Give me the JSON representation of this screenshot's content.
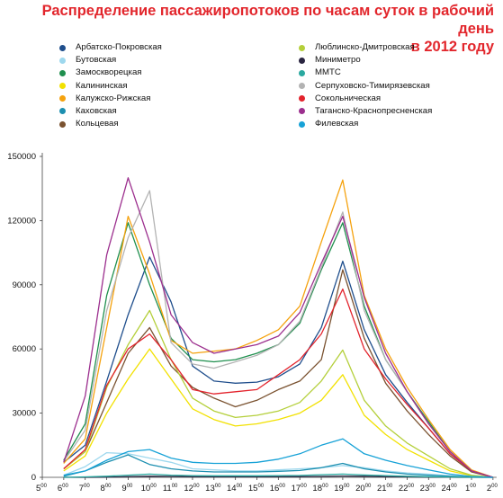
{
  "chart_data": {
    "type": "line",
    "title_lines": [
      "Распределение пассажиропотоков по часам суток в рабочий день",
      "в 2012 году"
    ],
    "x": [
      "5",
      "6",
      "7",
      "8",
      "9",
      "10",
      "11",
      "12",
      "13",
      "14",
      "15",
      "16",
      "17",
      "18",
      "19",
      "20",
      "21",
      "22",
      "23",
      "24",
      "1",
      "2"
    ],
    "x_tick_labels": [
      "5",
      "6",
      "7",
      "8",
      "9",
      "10",
      "11",
      "12",
      "13",
      "14",
      "15",
      "16",
      "17",
      "18",
      "19",
      "20",
      "21",
      "22",
      "23",
      "24",
      "1",
      "2"
    ],
    "x_tick_superscript": "00",
    "ylim": [
      0,
      150000
    ],
    "y_ticks": [
      0,
      30000,
      60000,
      90000,
      120000,
      150000
    ],
    "y_tick_labels": [
      "0",
      "30000",
      "60000",
      "90000",
      "120000",
      "150000"
    ],
    "grid": false,
    "legend_position": "top",
    "series": [
      {
        "name": "Арбатско-Покровская",
        "color": "#1f4e8c",
        "values": [
          null,
          7000,
          15000,
          45000,
          76000,
          103000,
          82000,
          52000,
          45000,
          44000,
          44500,
          47000,
          53000,
          70000,
          101000,
          69000,
          48000,
          35000,
          23000,
          11000,
          3000,
          0
        ]
      },
      {
        "name": "Бутовская",
        "color": "#9ed8ee",
        "values": [
          null,
          1000,
          5000,
          11500,
          11000,
          9000,
          7000,
          4000,
          3500,
          3000,
          3000,
          3500,
          4000,
          4500,
          5500,
          4500,
          3000,
          2000,
          1500,
          700,
          200,
          0
        ]
      },
      {
        "name": "Замоскворецкая",
        "color": "#1f8f4e",
        "values": [
          null,
          8000,
          25000,
          85000,
          119000,
          90000,
          65000,
          55000,
          54000,
          55000,
          58000,
          62000,
          72000,
          97000,
          119000,
          80000,
          55000,
          40000,
          26000,
          12000,
          3000,
          0
        ]
      },
      {
        "name": "Калининская",
        "color": "#f2e100",
        "values": [
          null,
          3000,
          10000,
          30000,
          46000,
          60000,
          46000,
          32000,
          27000,
          24000,
          25000,
          27000,
          30000,
          36000,
          48000,
          29000,
          20000,
          13000,
          8000,
          3000,
          800,
          0
        ]
      },
      {
        "name": "Калужско-Рижская",
        "color": "#f5a20e",
        "values": [
          null,
          6500,
          18000,
          70000,
          122000,
          95000,
          64000,
          58000,
          59000,
          60000,
          64000,
          69000,
          80000,
          110000,
          139000,
          85000,
          60000,
          42000,
          27000,
          13000,
          3500,
          0
        ]
      },
      {
        "name": "Каховская",
        "color": "#1c8fb0",
        "values": [
          null,
          500,
          3000,
          7000,
          10500,
          6000,
          4000,
          3000,
          2500,
          2500,
          2500,
          2800,
          3200,
          4500,
          6500,
          4000,
          2500,
          1500,
          1000,
          500,
          100,
          0
        ]
      },
      {
        "name": "Кольцевая",
        "color": "#7a5230",
        "values": [
          null,
          4000,
          12000,
          35000,
          58000,
          70000,
          52000,
          42000,
          37000,
          33000,
          36000,
          41000,
          45000,
          55000,
          97000,
          65000,
          44000,
          31000,
          20000,
          10000,
          2500,
          0
        ]
      },
      {
        "name": "Люблинско-Дмитровская",
        "color": "#b4cf3a",
        "values": [
          null,
          4000,
          12000,
          42000,
          62000,
          78000,
          55000,
          37000,
          31000,
          28000,
          29000,
          31000,
          35000,
          45000,
          59500,
          36000,
          24000,
          16000,
          10000,
          4000,
          1000,
          0
        ]
      },
      {
        "name": "Миниметро",
        "color": "#2a2540",
        "values": [
          null,
          0,
          0,
          100,
          300,
          500,
          400,
          300,
          300,
          300,
          300,
          300,
          300,
          400,
          600,
          500,
          300,
          200,
          100,
          50,
          0,
          0
        ]
      },
      {
        "name": "ММТС",
        "color": "#2aa9a0",
        "values": [
          null,
          0,
          200,
          500,
          1000,
          1500,
          1000,
          800,
          700,
          700,
          700,
          800,
          900,
          1200,
          1500,
          1100,
          800,
          500,
          300,
          150,
          50,
          0
        ]
      },
      {
        "name": "Серпуховско-Тимирязевская",
        "color": "#b3b3b3",
        "values": [
          null,
          7500,
          22000,
          78000,
          112000,
          134000,
          63000,
          53000,
          51000,
          54000,
          57000,
          62000,
          73000,
          98000,
          124000,
          78000,
          55000,
          40000,
          25000,
          12000,
          3000,
          0
        ]
      },
      {
        "name": "Сокольническая",
        "color": "#e3232c",
        "values": [
          null,
          4000,
          13000,
          43000,
          60000,
          67000,
          55000,
          41000,
          39000,
          40000,
          41000,
          48000,
          55000,
          67000,
          88000,
          60000,
          46000,
          34000,
          23000,
          11000,
          3000,
          0
        ]
      },
      {
        "name": "Таганско-Краснопресненская",
        "color": "#9c2f8e",
        "values": [
          null,
          7000,
          38000,
          104000,
          140000,
          110000,
          76000,
          63000,
          58000,
          60000,
          62000,
          66000,
          77000,
          100000,
          122000,
          84000,
          58000,
          40000,
          25000,
          12000,
          3000,
          0
        ]
      },
      {
        "name": "Филевская",
        "color": "#17a2d7",
        "values": [
          null,
          1000,
          3000,
          8000,
          12000,
          13000,
          9000,
          7000,
          6500,
          6500,
          7000,
          8500,
          11000,
          15000,
          18000,
          11000,
          8000,
          5500,
          3500,
          1500,
          400,
          0
        ]
      }
    ]
  }
}
